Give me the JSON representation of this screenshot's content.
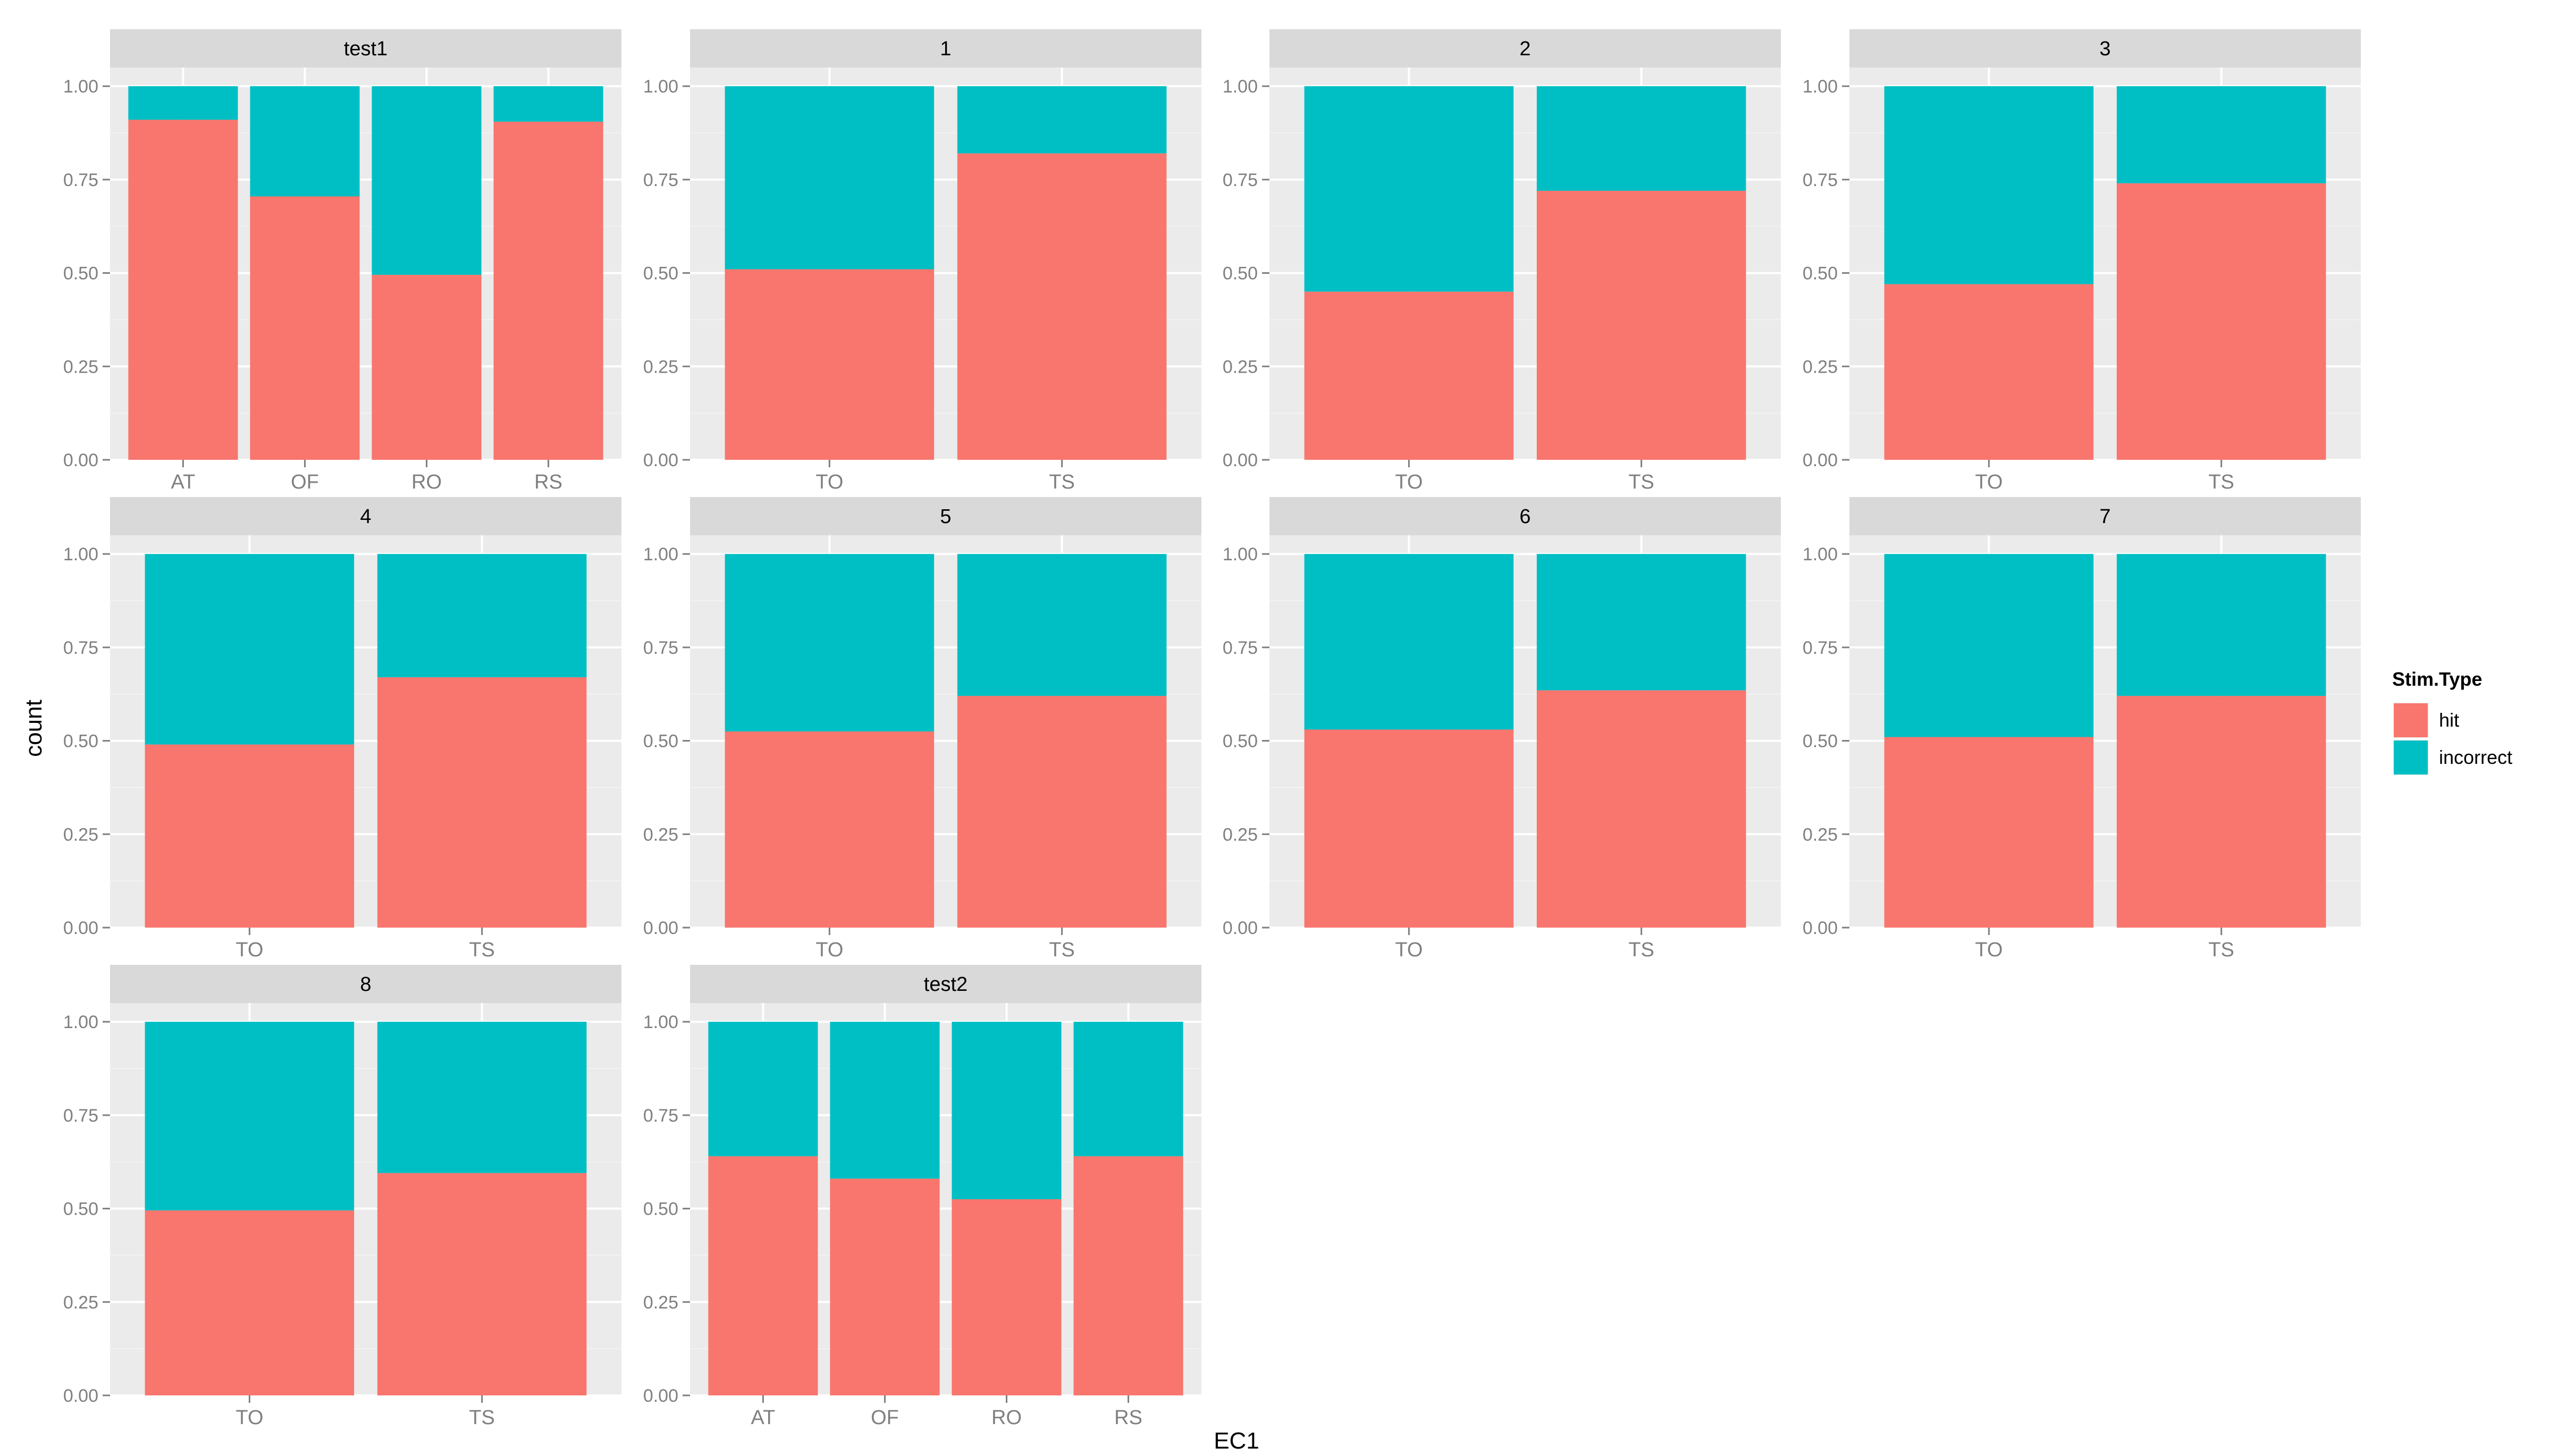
{
  "chart_data": {
    "type": "bar",
    "stacked": true,
    "xlabel": "EC1",
    "ylabel": "count",
    "ylim": [
      0,
      1.05
    ],
    "yticks": [
      "0.00",
      "0.25",
      "0.50",
      "0.75",
      "1.00"
    ],
    "ytick_values": [
      0,
      0.25,
      0.5,
      0.75,
      1.0
    ],
    "legend": {
      "title": "Stim.Type",
      "position": "right",
      "entries": [
        {
          "label": "hit",
          "color": "#F8766D"
        },
        {
          "label": "incorrect",
          "color": "#00BFC4"
        }
      ]
    },
    "colors": {
      "panel_bg": "#EBEBEB",
      "strip_bg": "#D9D9D9",
      "grid_major": "#FFFFFF",
      "grid_minor": "#F2F2F2",
      "tick_text": "#7F7F7F"
    },
    "panels": [
      {
        "label": "test1",
        "categories": [
          "AT",
          "OF",
          "RO",
          "RS"
        ],
        "hit": [
          0.91,
          0.705,
          0.495,
          0.905
        ],
        "incorrect": [
          0.09,
          0.295,
          0.505,
          0.095
        ]
      },
      {
        "label": "1",
        "categories": [
          "TO",
          "TS"
        ],
        "hit": [
          0.51,
          0.82
        ],
        "incorrect": [
          0.49,
          0.18
        ]
      },
      {
        "label": "2",
        "categories": [
          "TO",
          "TS"
        ],
        "hit": [
          0.45,
          0.72
        ],
        "incorrect": [
          0.55,
          0.28
        ]
      },
      {
        "label": "3",
        "categories": [
          "TO",
          "TS"
        ],
        "hit": [
          0.47,
          0.74
        ],
        "incorrect": [
          0.53,
          0.26
        ]
      },
      {
        "label": "4",
        "categories": [
          "TO",
          "TS"
        ],
        "hit": [
          0.49,
          0.67
        ],
        "incorrect": [
          0.51,
          0.33
        ]
      },
      {
        "label": "5",
        "categories": [
          "TO",
          "TS"
        ],
        "hit": [
          0.525,
          0.62
        ],
        "incorrect": [
          0.475,
          0.38
        ]
      },
      {
        "label": "6",
        "categories": [
          "TO",
          "TS"
        ],
        "hit": [
          0.53,
          0.635
        ],
        "incorrect": [
          0.47,
          0.365
        ]
      },
      {
        "label": "7",
        "categories": [
          "TO",
          "TS"
        ],
        "hit": [
          0.51,
          0.62
        ],
        "incorrect": [
          0.49,
          0.38
        ]
      },
      {
        "label": "8",
        "categories": [
          "TO",
          "TS"
        ],
        "hit": [
          0.495,
          0.595
        ],
        "incorrect": [
          0.505,
          0.405
        ]
      },
      {
        "label": "test2",
        "categories": [
          "AT",
          "OF",
          "RO",
          "RS"
        ],
        "hit": [
          0.64,
          0.58,
          0.525,
          0.64
        ],
        "incorrect": [
          0.36,
          0.42,
          0.475,
          0.36
        ]
      }
    ]
  }
}
